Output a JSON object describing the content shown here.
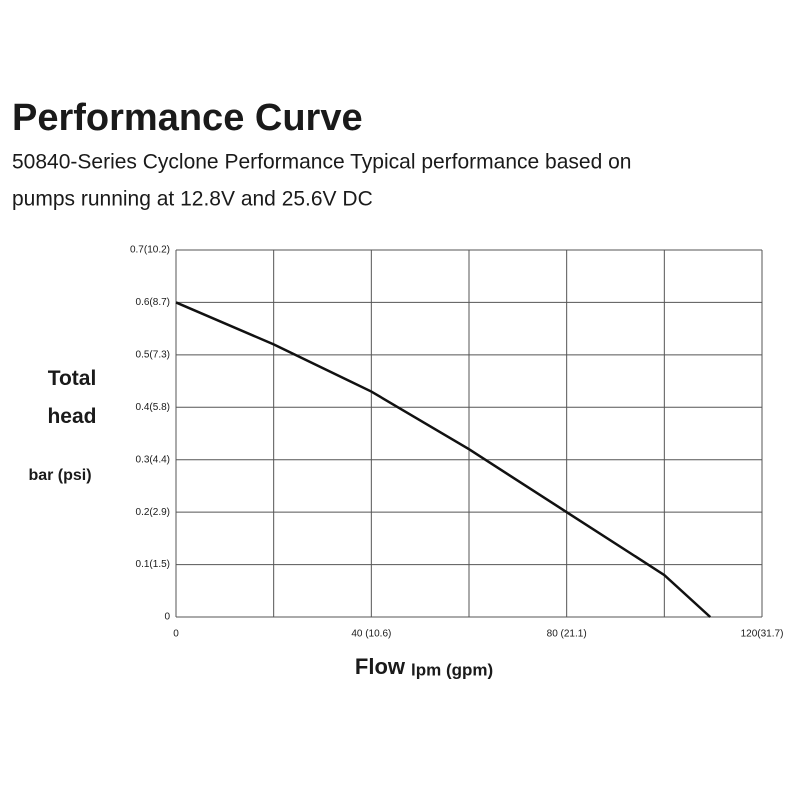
{
  "chart_data": {
    "type": "line",
    "title": "Performance Curve",
    "subtitle": [
      "50840-Series Cyclone Performance Typical performance based on",
      "pumps running at 12.8V and 25.6V DC"
    ],
    "ylabel": "Total head",
    "yunit": "bar (psi)",
    "xlabel": "Flow",
    "xunit": "lpm (gpm)",
    "x": [
      0,
      20,
      40,
      60,
      80,
      100,
      109.4
    ],
    "series": [
      {
        "name": "Cyclone",
        "color": "#111111",
        "values": [
          0.6,
          0.52,
          0.43,
          0.32,
          0.2,
          0.08,
          0
        ]
      }
    ],
    "xlim": [
      0,
      120
    ],
    "xticks": [
      {
        "value": 0,
        "label": "0"
      },
      {
        "value": 20,
        "label": null
      },
      {
        "value": 40,
        "label": "40 (10.6)"
      },
      {
        "value": 60,
        "label": null
      },
      {
        "value": 80,
        "label": "80 (21.1)"
      },
      {
        "value": 100,
        "label": null
      },
      {
        "value": 120,
        "label": "120(31.7)"
      }
    ],
    "ylim": [
      0,
      0.7
    ],
    "yticks": [
      {
        "value": 0,
        "label": "0"
      },
      {
        "value": 0.1,
        "label": "0.1(1.5)"
      },
      {
        "value": 0.2,
        "label": "0.2(2.9)"
      },
      {
        "value": 0.3,
        "label": "0.3(4.4)"
      },
      {
        "value": 0.4,
        "label": "0.4(5.8)"
      },
      {
        "value": 0.5,
        "label": "0.5(7.3)"
      },
      {
        "value": 0.6,
        "label": "0.6(8.7)"
      },
      {
        "value": 0.7,
        "label": "0.7(10.2)"
      }
    ],
    "grid": true
  }
}
